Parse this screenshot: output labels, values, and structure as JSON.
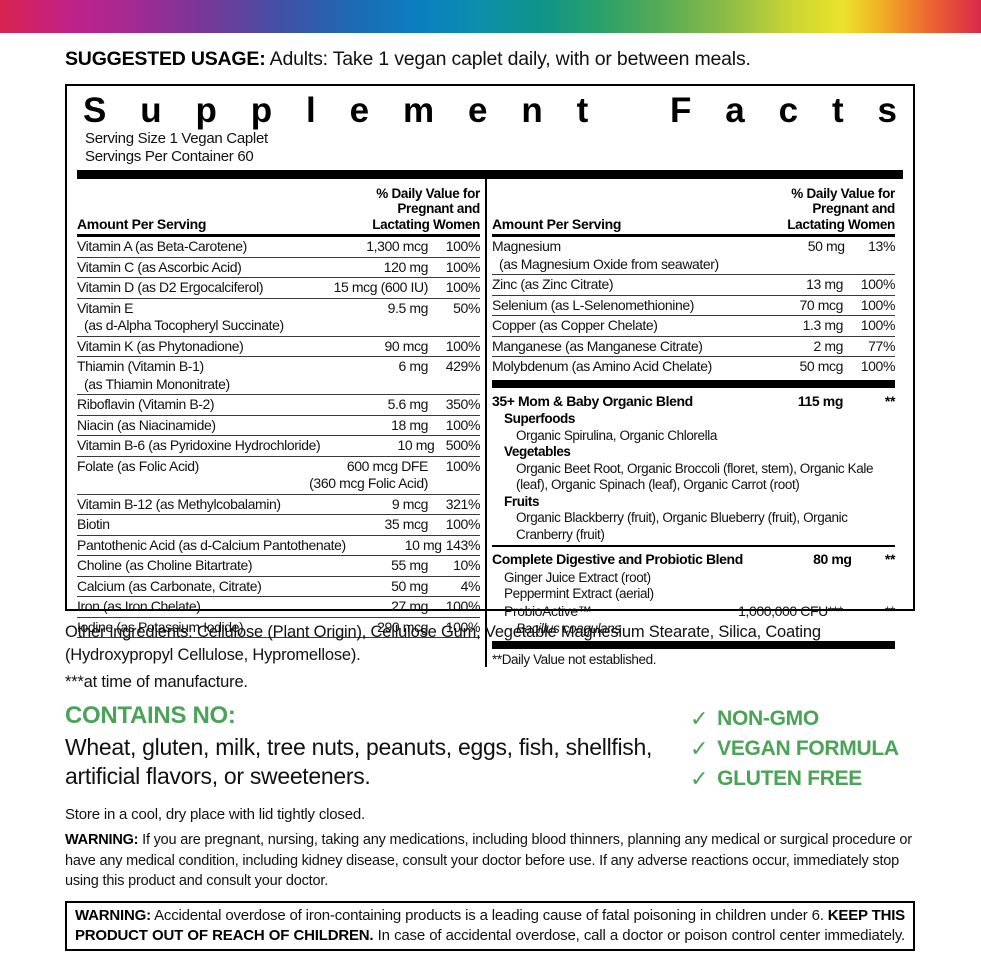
{
  "page": {
    "rainbow_colors": [
      "#d7234e 0%",
      "#c12288 7%",
      "#a02a93 14%",
      "#6f3a98 22%",
      "#3f51a5 29%",
      "#1e6ab4 36%",
      "#0a80c0 43%",
      "#0c8fab 49%",
      "#0f9489 55%",
      "#2aa06c 61%",
      "#54aa57 67%",
      "#8cbb46 74%",
      "#cdd634 81%",
      "#ece22c 86%",
      "#f0ac24 90%",
      "#ec6231 95%",
      "#d8294b 100%"
    ],
    "usage": {
      "label": "SUGGESTED USAGE:",
      "text": " Adults: Take 1 vegan caplet daily, with or between meals."
    }
  },
  "colors": {
    "green": "#4aa356"
  },
  "facts": {
    "title": "Supplement Facts",
    "serving_size": "Serving Size 1 Vegan Caplet",
    "servings_per_container": "Servings Per Container 60",
    "col_header": {
      "amount": "Amount Per Serving",
      "dv_line1": "% Daily Value for",
      "dv_line2": "Pregnant and",
      "dv_line3": "Lactating Women"
    },
    "left_rows": [
      {
        "name": "Vitamin A (as Beta-Carotene)",
        "amount": "1,300 mcg",
        "dv": "100%"
      },
      {
        "name": "Vitamin C (as Ascorbic Acid)",
        "amount": "120 mg",
        "dv": "100%"
      },
      {
        "name": "Vitamin D (as D2 Ergocalciferol)",
        "amount": "15 mcg (600 IU)",
        "dv": "100%"
      },
      {
        "name": "Vitamin E",
        "sub": "(as d-Alpha Tocopheryl Succinate)",
        "amount": "9.5 mg",
        "dv": "50%"
      },
      {
        "name": "Vitamin K (as Phytonadione)",
        "amount": "90 mcg",
        "dv": "100%"
      },
      {
        "name": "Thiamin (Vitamin B-1)",
        "sub": "(as Thiamin Mononitrate)",
        "amount": "6 mg",
        "dv": "429%"
      },
      {
        "name": "Riboflavin (Vitamin B-2)",
        "amount": "5.6 mg",
        "dv": "350%"
      },
      {
        "name": "Niacin (as Niacinamide)",
        "amount": "18 mg",
        "dv": "100%"
      },
      {
        "name": "Vitamin B-6 (as Pyridoxine Hydrochloride)",
        "amount": "10 mg",
        "dv": "500%"
      },
      {
        "name": "Folate (as Folic Acid)",
        "amount": "600 mcg DFE",
        "amount_sub": "(360 mcg Folic Acid)",
        "dv": "100%"
      },
      {
        "name": "Vitamin B-12 (as Methylcobalamin)",
        "amount": "9 mcg",
        "dv": "321%"
      },
      {
        "name": "Biotin",
        "amount": "35 mcg",
        "dv": "100%"
      },
      {
        "name": "Pantothenic Acid (as d-Calcium Pantothenate)",
        "amount": "10 mg",
        "dv": "143%"
      },
      {
        "name": "Choline (as Choline Bitartrate)",
        "amount": "55 mg",
        "dv": "10%"
      },
      {
        "name": "Calcium (as Carbonate, Citrate)",
        "amount": "50 mg",
        "dv": "4%"
      },
      {
        "name": "Iron (as Iron Chelate)",
        "amount": "27 mg",
        "dv": "100%"
      },
      {
        "name": "Iodine (as Potassium Iodide)",
        "amount": "290 mcg",
        "dv": "100%"
      }
    ],
    "right_rows": [
      {
        "name": "Magnesium",
        "sub": "(as Magnesium Oxide from seawater)",
        "amount": "50 mg",
        "dv": "13%"
      },
      {
        "name": "Zinc (as Zinc Citrate)",
        "amount": "13 mg",
        "dv": "100%"
      },
      {
        "name": "Selenium (as L-Selenomethionine)",
        "amount": "70 mcg",
        "dv": "100%"
      },
      {
        "name": "Copper (as Copper Chelate)",
        "amount": "1.3 mg",
        "dv": "100%"
      },
      {
        "name": "Manganese (as Manganese Citrate)",
        "amount": "2 mg",
        "dv": "77%"
      },
      {
        "name": "Molybdenum (as Amino Acid Chelate)",
        "amount": "50 mcg",
        "dv": "100%"
      }
    ],
    "organic_blend": {
      "title": "35+ Mom & Baby Organic Blend",
      "amount": "115 mg",
      "dv": "**",
      "groups": [
        {
          "heading": "Superfoods",
          "items": "Organic Spirulina, Organic Chlorella"
        },
        {
          "heading": "Vegetables",
          "items": "Organic Beet Root, Organic Broccoli (floret, stem), Organic Kale (leaf), Organic Spinach (leaf), Organic Carrot (root)"
        },
        {
          "heading": "Fruits",
          "items": "Organic Blackberry (fruit), Organic Blueberry (fruit), Organic Cranberry (fruit)"
        }
      ]
    },
    "digestive_blend": {
      "title": "Complete Digestive and Probiotic Blend",
      "amount": "80 mg",
      "dv": "**",
      "items": [
        "Ginger Juice Extract (root)",
        "Peppermint Extract (aerial)"
      ],
      "probio": {
        "name": "ProbioActive™",
        "amount": "1,000,000 CFU***",
        "dv": "**",
        "species": "Bacillus coagulans"
      }
    },
    "footnote": "**Daily Value not established."
  },
  "bottom": {
    "other_ingredients": "Other ingredients: Cellulose (Plant Origin), Cellulose Gum, Vegetable Magnesium Stearate, Silica, Coating (Hydroxypropyl Cellulose, Hypromellose).",
    "manufacture_note": "***at time of manufacture.",
    "contains_no": {
      "heading": "CONTAINS NO:",
      "body": "Wheat, gluten, milk, tree nuts, peanuts, eggs, fish, shellfish, artificial flavors, or sweeteners."
    },
    "badges": [
      {
        "check": "✓",
        "label": "NON-GMO"
      },
      {
        "check": "✓",
        "label": "VEGAN FORMULA"
      },
      {
        "check": "✓",
        "label": "GLUTEN FREE"
      }
    ],
    "storage": "Store in a cool, dry place with lid tightly closed.",
    "warning": {
      "label": "WARNING:",
      "text": " If you are pregnant, nursing, taking any medications, including blood thinners, planning any medical or surgical procedure or have any medical condition, including kidney disease, consult your doctor before use. If any adverse reactions occur, immediately stop using this product and consult your doctor."
    },
    "boxed_warning": {
      "label": "WARNING:",
      "text1": " Accidental overdose of iron-containing products is a leading cause of fatal poisoning in children under 6. ",
      "bold2": "KEEP THIS PRODUCT OUT OF REACH OF CHILDREN.",
      "text2": " In case of accidental overdose, call a doctor or poison control center immediately."
    }
  }
}
